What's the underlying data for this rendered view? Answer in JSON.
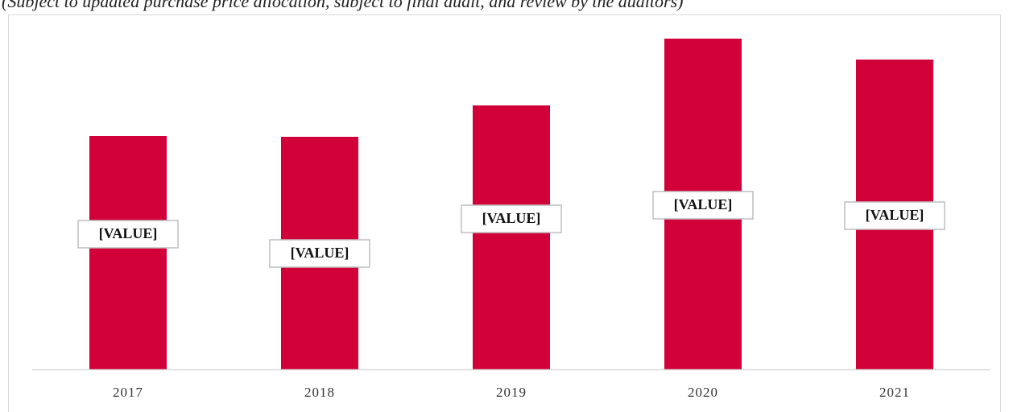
{
  "chart_data": {
    "type": "bar",
    "title": "(Subject to updated purchase price allocation, subject to final audit, and review by the auditors)",
    "categories": [
      "2017",
      "2018",
      "2019",
      "2020",
      "2021"
    ],
    "values": [
      290,
      289,
      328,
      411,
      385
    ],
    "value_labels": [
      "[VALUE]",
      "[VALUE]",
      "[VALUE]",
      "[VALUE]",
      "[VALUE]"
    ],
    "color": "#d10038"
  }
}
